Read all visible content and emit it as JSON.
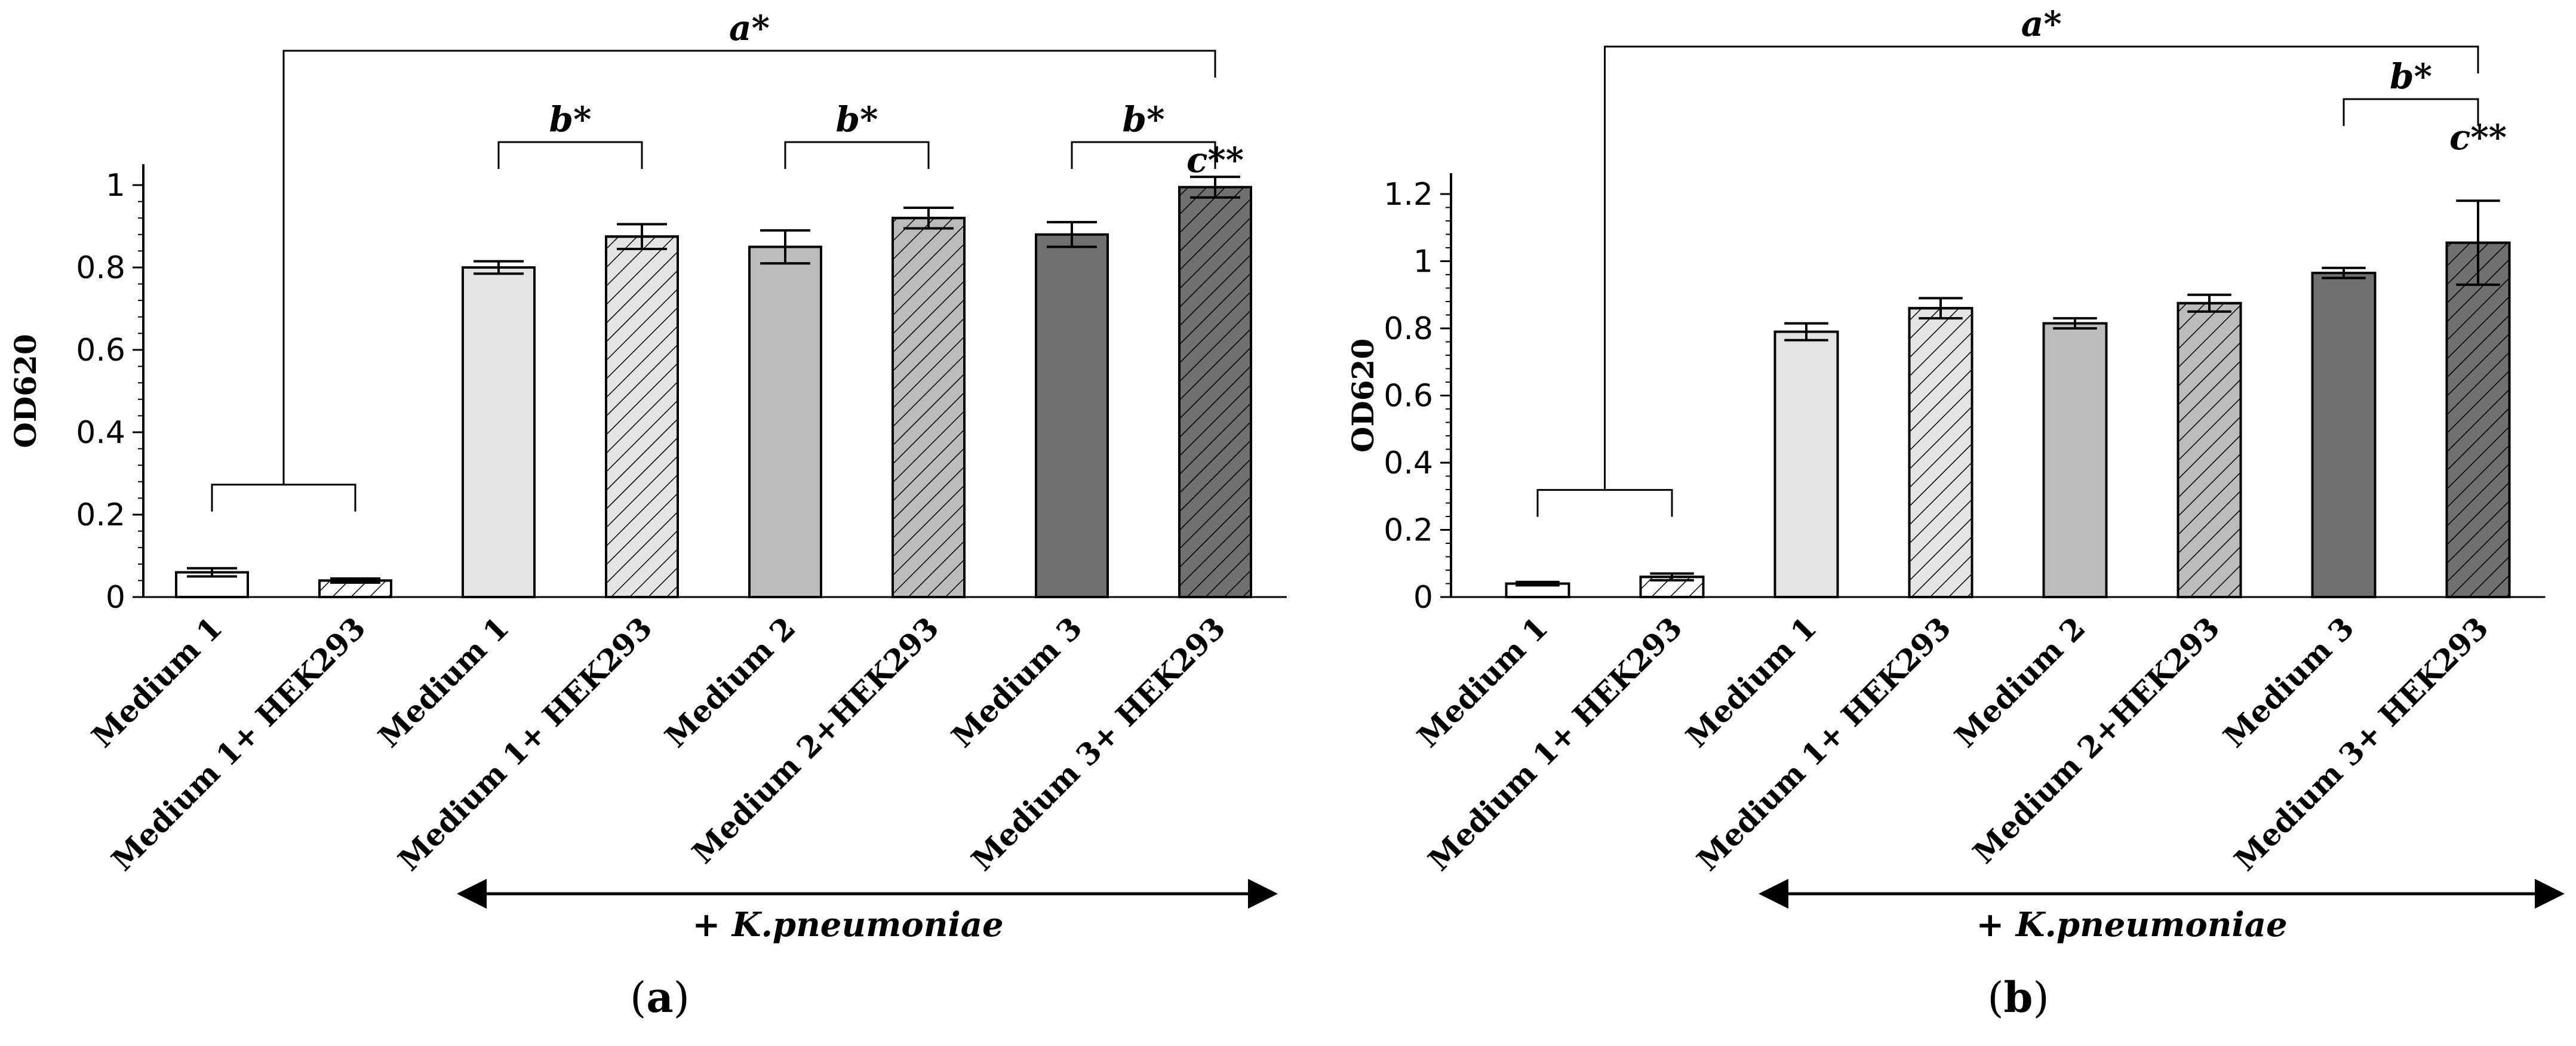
{
  "chart_data": [
    {
      "type": "bar",
      "panel_label": "a",
      "ylabel": "OD620",
      "ylim": [
        0,
        1
      ],
      "yticks": [
        "0",
        "0.2",
        "0.4",
        "0.6",
        "0.8",
        "1"
      ],
      "categories": [
        "Medium 1",
        "Medium 1+ HEK293",
        "Medium 1",
        "Medium 1+ HEK293",
        "Medium 2",
        "Medium 2+HEK293",
        "Medium 3",
        "Medium 3+ HEK293"
      ],
      "values": [
        0.06,
        0.04,
        0.8,
        0.875,
        0.85,
        0.92,
        0.88,
        0.995
      ],
      "errors": [
        0.01,
        0.005,
        0.015,
        0.03,
        0.04,
        0.025,
        0.03,
        0.025
      ],
      "fills": [
        "#ffffff",
        "#ffffff",
        "#e4e4e4",
        "#e4e4e4",
        "#bcbcbc",
        "#bcbcbc",
        "#707070",
        "#707070"
      ],
      "hatched": [
        false,
        true,
        false,
        true,
        false,
        true,
        false,
        true
      ],
      "annotations": [
        {
          "label": "a*",
          "from": 0,
          "to": 7,
          "level": 0
        },
        {
          "label": "b*",
          "from": 2,
          "to": 3,
          "level": 1
        },
        {
          "label": "b*",
          "from": 4,
          "to": 5,
          "level": 1
        },
        {
          "label": "b*",
          "from": 6,
          "to": 7,
          "level": 1
        },
        {
          "label": "c**",
          "at": 7,
          "level": 2
        }
      ],
      "group_arrow_label": "+ K.pneumoniae",
      "group_arrow_from": 2,
      "group_arrow_to": 7
    },
    {
      "type": "bar",
      "panel_label": "b",
      "ylabel": "OD620",
      "ylim": [
        0,
        1.2
      ],
      "yticks": [
        "0",
        "0.2",
        "0.4",
        "0.6",
        "0.8",
        "1",
        "1.2"
      ],
      "categories": [
        "Medium 1",
        "Medium 1+ HEK293",
        "Medium 1",
        "Medium 1+ HEK293",
        "Medium 2",
        "Medium 2+HEK293",
        "Medium 3",
        "Medium 3+ HEK293"
      ],
      "values": [
        0.04,
        0.06,
        0.79,
        0.86,
        0.815,
        0.875,
        0.965,
        1.055
      ],
      "errors": [
        0.005,
        0.01,
        0.025,
        0.03,
        0.015,
        0.025,
        0.015,
        0.125
      ],
      "fills": [
        "#ffffff",
        "#ffffff",
        "#e4e4e4",
        "#e4e4e4",
        "#bcbcbc",
        "#bcbcbc",
        "#707070",
        "#707070"
      ],
      "hatched": [
        false,
        true,
        false,
        true,
        false,
        true,
        false,
        true
      ],
      "annotations": [
        {
          "label": "a*",
          "from": 0,
          "to": 7,
          "level": 0
        },
        {
          "label": "b*",
          "from": 6,
          "to": 7,
          "level": 1
        },
        {
          "label": "c**",
          "at": 7,
          "level": 2
        }
      ],
      "group_arrow_label": "+ K.pneumoniae",
      "group_arrow_from": 2,
      "group_arrow_to": 7
    }
  ]
}
